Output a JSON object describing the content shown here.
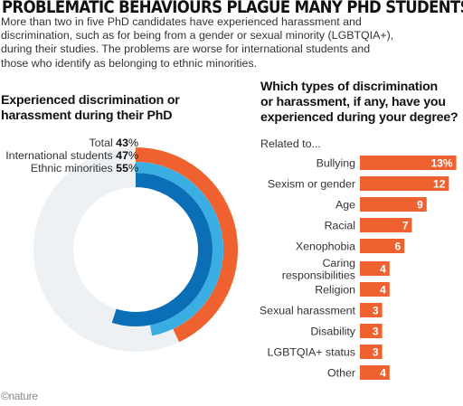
{
  "headline": "PROBLEMATIC BEHAVIOURS PLAGUE MANY PHD STUDENTS",
  "standfirst": [
    "More than two in five PhD candidates have experienced harassment and",
    "discrimination, such as for being from a gender or sexual minority (LGBTQIA+),",
    "during their studies. The problems are worse for international students and",
    "those who identify as belonging to ethnic minorities."
  ],
  "donut_title": [
    "Experienced discrimination or",
    "harassment during their PhD"
  ],
  "bar_title": [
    "Which types of discrimination",
    "or harassment, if any, have you",
    "experienced during your degree?"
  ],
  "bar_subtitle": "Related to...",
  "credit": "©nature",
  "colors": {
    "orange": "#ef6230",
    "light_blue": "#3aaee3",
    "dark_blue": "#0a6fb7",
    "track": "#eef1f4"
  },
  "chart_data": [
    {
      "type": "pie",
      "chart_style": "concentric-rings",
      "series": [
        {
          "name": "Total",
          "value": 43,
          "label": "43",
          "color": "#ef6230"
        },
        {
          "name": "International students",
          "value": 47,
          "label": "47",
          "color": "#3aaee3"
        },
        {
          "name": "Ethnic minorities",
          "value": 55,
          "label": "55",
          "color": "#0a6fb7"
        }
      ],
      "unit": "%"
    },
    {
      "type": "bar",
      "orientation": "horizontal",
      "categories": [
        "Bullying",
        "Sexism or gender",
        "Age",
        "Racial",
        "Xenophobia",
        "Caring responsibilities",
        "Religion",
        "Sexual harassment",
        "Disability",
        "LGBTQIA+ status",
        "Other"
      ],
      "category_lines": [
        [
          "Bullying"
        ],
        [
          "Sexism or gender"
        ],
        [
          "Age"
        ],
        [
          "Racial"
        ],
        [
          "Xenophobia"
        ],
        [
          "Caring",
          "responsibilities"
        ],
        [
          "Religion"
        ],
        [
          "Sexual harassment"
        ],
        [
          "Disability"
        ],
        [
          "LGBTQIA+ status"
        ],
        [
          "Other"
        ]
      ],
      "values": [
        13,
        12,
        9,
        7,
        6,
        4,
        4,
        3,
        3,
        3,
        4
      ],
      "value_labels": [
        "13%",
        "12",
        "9",
        "7",
        "6",
        "4",
        "4",
        "3",
        "3",
        "3",
        "4"
      ],
      "color": "#ef6230"
    }
  ]
}
